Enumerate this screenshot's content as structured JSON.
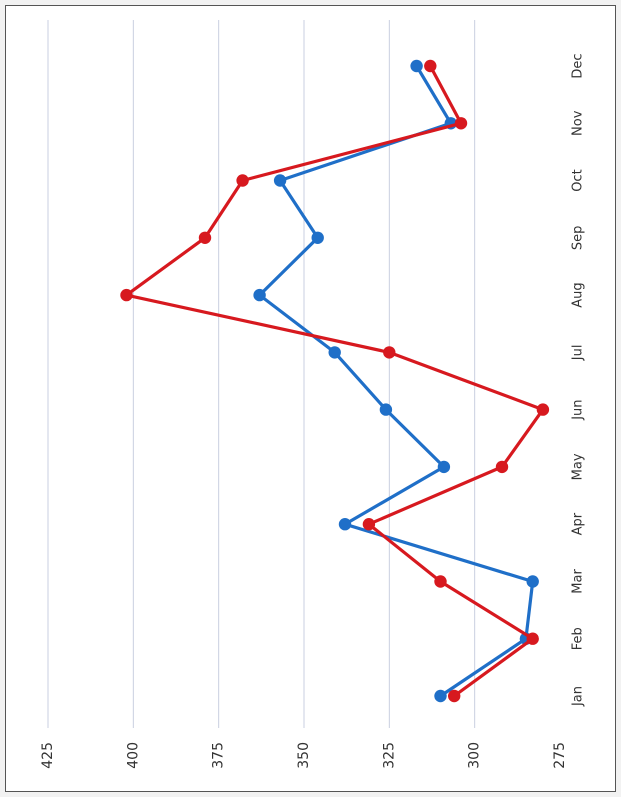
{
  "chart_data": {
    "type": "line",
    "orientation": "rotated-90-clockwise",
    "title": "",
    "xlabel": "",
    "ylabel": "",
    "categories": [
      "Jan",
      "Feb",
      "Mar",
      "Apr",
      "May",
      "Jun",
      "Jul",
      "Aug",
      "Sep",
      "Oct",
      "Nov",
      "Dec"
    ],
    "ylim": [
      275,
      425
    ],
    "yticks": [
      275,
      300,
      325,
      350,
      375,
      400,
      425
    ],
    "grid": true,
    "legend": "none",
    "series": [
      {
        "color": "#1f6fc8",
        "values": [
          310,
          285,
          283,
          338,
          309,
          326,
          341,
          363,
          346,
          357,
          307,
          317
        ]
      },
      {
        "color": "#d7191f",
        "values": [
          306,
          283,
          310,
          331,
          292,
          280,
          325,
          402,
          379,
          368,
          304,
          313
        ]
      }
    ]
  }
}
